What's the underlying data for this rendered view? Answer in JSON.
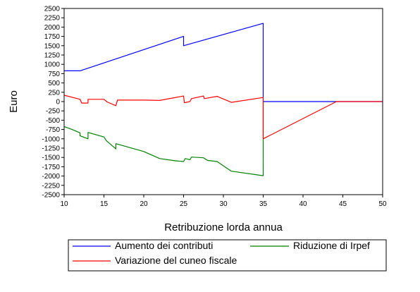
{
  "chart_data": {
    "type": "line",
    "xlabel": "Retribuzione lorda annua",
    "ylabel": "Euro",
    "xlim": [
      10,
      50
    ],
    "ylim": [
      -2500,
      2500
    ],
    "xticks": [
      10,
      15,
      20,
      25,
      30,
      35,
      40,
      45,
      50
    ],
    "yticks": [
      2500,
      2250,
      2000,
      1750,
      1500,
      1250,
      1000,
      750,
      500,
      250,
      0,
      -250,
      -500,
      -750,
      -1000,
      -1250,
      -1500,
      -1750,
      -2000,
      -2250,
      -2500
    ],
    "legend_position": "bottom",
    "series": [
      {
        "name": "Aumento dei contributi",
        "color": "#0000ff",
        "x": [
          10,
          12,
          25,
          25,
          35,
          35,
          50
        ],
        "y": [
          825,
          825,
          1750,
          1500,
          2100,
          0,
          0
        ]
      },
      {
        "name": "Riduzione di Irpef",
        "color": "#008000",
        "x": [
          10,
          11,
          12,
          12,
          13,
          13,
          15,
          15.3,
          16.5,
          16.5,
          20,
          22,
          24,
          25,
          25.2,
          25.8,
          26,
          27.5,
          28,
          29.2,
          31,
          35,
          35
        ],
        "y": [
          -670,
          -750,
          -840,
          -920,
          -1000,
          -830,
          -950,
          -1050,
          -1270,
          -1130,
          -1340,
          -1530,
          -1590,
          -1610,
          -1530,
          -1560,
          -1490,
          -1510,
          -1580,
          -1610,
          -1870,
          -1990,
          0
        ]
      },
      {
        "name": "Variazione del cuneo fiscale",
        "color": "#ff0000",
        "x": [
          10,
          12,
          12.2,
          13,
          13,
          15,
          15.4,
          16.5,
          16.7,
          20,
          22,
          25,
          25.1,
          25.8,
          26,
          27.5,
          27.6,
          29.2,
          31,
          35,
          35,
          44.2,
          50
        ],
        "y": [
          170,
          60,
          -40,
          -40,
          60,
          60,
          -10,
          -110,
          40,
          40,
          30,
          150,
          -30,
          0,
          80,
          150,
          80,
          140,
          -20,
          110,
          -1000,
          0,
          0
        ]
      }
    ]
  }
}
